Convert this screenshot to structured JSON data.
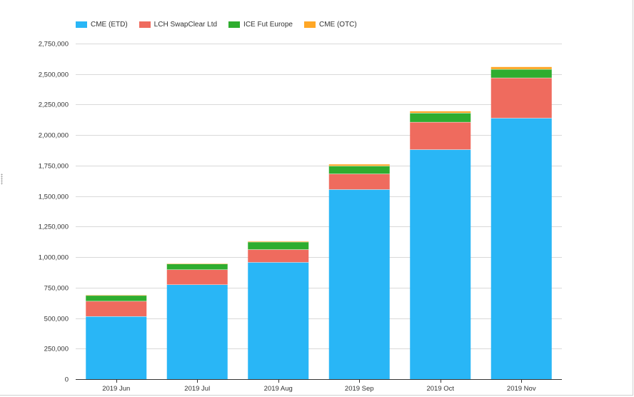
{
  "chart_data": {
    "type": "bar",
    "stacked": true,
    "title": "",
    "xlabel": "",
    "ylabel": "",
    "categories": [
      "2019 Jun",
      "2019 Jul",
      "2019 Aug",
      "2019 Sep",
      "2019 Oct",
      "2019 Nov"
    ],
    "series": [
      {
        "name": "CME (ETD)",
        "color": "#29b6f6",
        "values": [
          515000,
          775000,
          958000,
          1555000,
          1882000,
          2140000
        ]
      },
      {
        "name": "LCH SwapClear Ltd",
        "color": "#ef6b5e",
        "values": [
          125000,
          123000,
          105000,
          128000,
          225000,
          330000
        ]
      },
      {
        "name": "ICE Fut Europe",
        "color": "#2fad2f",
        "values": [
          47000,
          47000,
          62000,
          65000,
          75000,
          70000
        ]
      },
      {
        "name": "CME (OTC)",
        "color": "#ffa726",
        "values": [
          2000,
          3000,
          4000,
          12000,
          13000,
          18000
        ]
      }
    ],
    "ylim": [
      0,
      2750000
    ],
    "yticks": [
      0,
      250000,
      500000,
      750000,
      1000000,
      1250000,
      1500000,
      1750000,
      2000000,
      2250000,
      2500000,
      2750000
    ],
    "ytick_labels": [
      "0",
      "250,000",
      "500,000",
      "750,000",
      "1,000,000",
      "1,250,000",
      "1,500,000",
      "1,750,000",
      "2,000,000",
      "2,250,000",
      "2,500,000",
      "2,750,000"
    ],
    "grid": true,
    "legend_position": "top-left"
  }
}
